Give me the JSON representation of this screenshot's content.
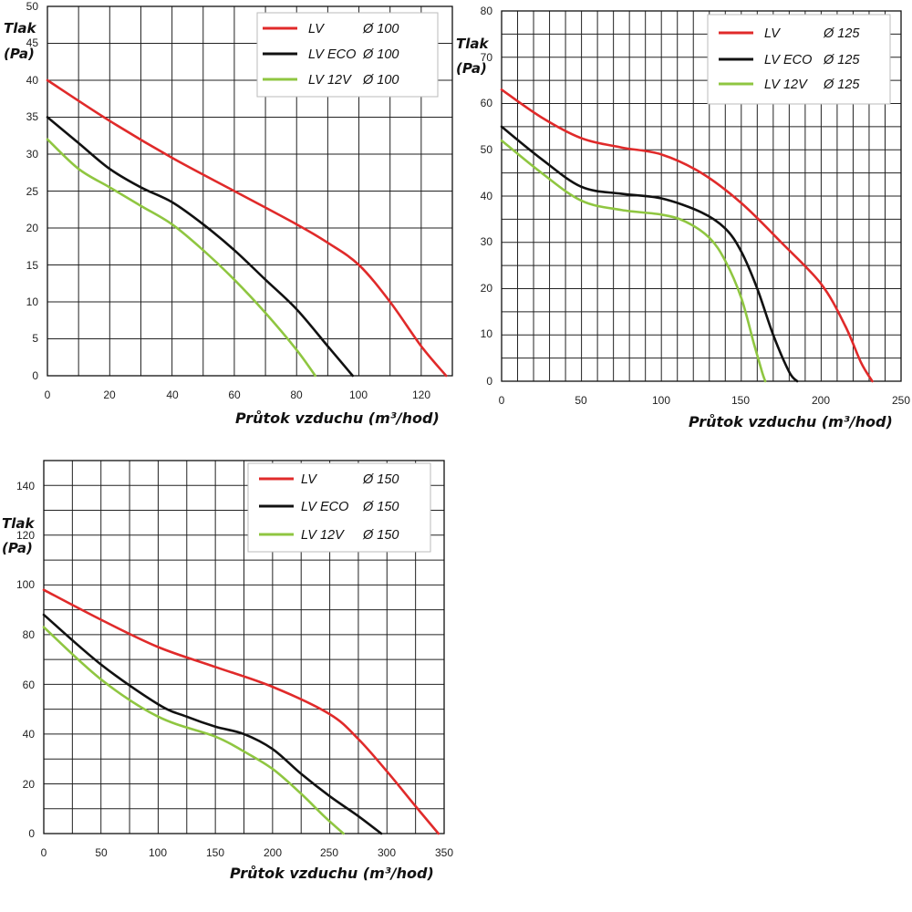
{
  "colors": {
    "LV": "#e02a2a",
    "LV ECO": "#111111",
    "LV 12V": "#8fc641"
  },
  "chart_data": [
    {
      "type": "line",
      "xlabel": "Průtok vzduchu (m³/hod)",
      "ylabel_top": "Tlak",
      "ylabel_bottom": "(Pa)",
      "xlim": [
        0,
        130
      ],
      "ylim": [
        0,
        50
      ],
      "x_ticks": [
        "0",
        "20",
        "40",
        "60",
        "80",
        "100",
        "120"
      ],
      "y_ticks": [
        "50",
        "45",
        "40",
        "35",
        "30",
        "25",
        "20",
        "15",
        "10",
        "5",
        "0"
      ],
      "series": [
        {
          "name": "LV",
          "diameter": "Ø 100",
          "points": [
            [
              0,
              40
            ],
            [
              20,
              34.5
            ],
            [
              40,
              29.5
            ],
            [
              60,
              25
            ],
            [
              80,
              20.5
            ],
            [
              90,
              18
            ],
            [
              100,
              15
            ],
            [
              110,
              10
            ],
            [
              120,
              4
            ],
            [
              128,
              0
            ]
          ]
        },
        {
          "name": "LV ECO",
          "diameter": "Ø 100",
          "points": [
            [
              0,
              35
            ],
            [
              10,
              31.5
            ],
            [
              20,
              28
            ],
            [
              30,
              25.5
            ],
            [
              40,
              23.5
            ],
            [
              50,
              20.5
            ],
            [
              60,
              17
            ],
            [
              70,
              13
            ],
            [
              80,
              9
            ],
            [
              90,
              4
            ],
            [
              98,
              0
            ]
          ]
        },
        {
          "name": "LV 12V",
          "diameter": "Ø 100",
          "points": [
            [
              0,
              32
            ],
            [
              10,
              28
            ],
            [
              20,
              25.5
            ],
            [
              30,
              23
            ],
            [
              40,
              20.5
            ],
            [
              50,
              17
            ],
            [
              60,
              13
            ],
            [
              70,
              8.5
            ],
            [
              80,
              3.5
            ],
            [
              86,
              0
            ]
          ]
        }
      ]
    },
    {
      "type": "line",
      "xlabel": "Průtok vzduchu (m³/hod)",
      "ylabel_top": "Tlak",
      "ylabel_bottom": "(Pa)",
      "xlim": [
        0,
        250
      ],
      "ylim": [
        0,
        80
      ],
      "x_ticks": [
        "0",
        "50",
        "100",
        "150",
        "200",
        "250"
      ],
      "y_ticks": [
        "80",
        "70",
        "60",
        "50",
        "40",
        "30",
        "20",
        "10",
        "0"
      ],
      "series": [
        {
          "name": "LV",
          "diameter": "Ø 125",
          "points": [
            [
              0,
              63
            ],
            [
              25,
              57
            ],
            [
              50,
              52.5
            ],
            [
              75,
              50.5
            ],
            [
              100,
              49
            ],
            [
              125,
              45
            ],
            [
              150,
              38.5
            ],
            [
              175,
              30
            ],
            [
              200,
              21
            ],
            [
              215,
              12
            ],
            [
              225,
              4
            ],
            [
              232,
              0
            ]
          ]
        },
        {
          "name": "LV ECO",
          "diameter": "Ø 125",
          "points": [
            [
              0,
              55
            ],
            [
              25,
              48
            ],
            [
              50,
              42
            ],
            [
              75,
              40.5
            ],
            [
              100,
              39.5
            ],
            [
              125,
              36.5
            ],
            [
              140,
              33
            ],
            [
              150,
              28
            ],
            [
              160,
              20
            ],
            [
              170,
              10
            ],
            [
              180,
              2
            ],
            [
              185,
              0
            ]
          ]
        },
        {
          "name": "LV 12V",
          "diameter": "Ø 125",
          "points": [
            [
              0,
              52
            ],
            [
              25,
              45
            ],
            [
              50,
              39
            ],
            [
              75,
              37
            ],
            [
              100,
              36
            ],
            [
              115,
              34.5
            ],
            [
              130,
              31
            ],
            [
              140,
              26
            ],
            [
              150,
              18
            ],
            [
              158,
              8
            ],
            [
              163,
              2
            ],
            [
              165,
              0
            ]
          ]
        }
      ]
    },
    {
      "type": "line",
      "xlabel": "Průtok vzduchu (m³/hod)",
      "ylabel_top": "Tlak",
      "ylabel_bottom": "(Pa)",
      "xlim": [
        0,
        350
      ],
      "ylim": [
        0,
        150
      ],
      "x_ticks": [
        "0",
        "50",
        "100",
        "150",
        "200",
        "250",
        "300",
        "350"
      ],
      "y_ticks": [
        "140",
        "120",
        "100",
        "80",
        "60",
        "40",
        "20",
        "0"
      ],
      "series": [
        {
          "name": "LV",
          "diameter": "Ø 150",
          "points": [
            [
              0,
              98
            ],
            [
              50,
              86
            ],
            [
              100,
              75
            ],
            [
              150,
              67
            ],
            [
              200,
              59
            ],
            [
              250,
              48
            ],
            [
              275,
              38
            ],
            [
              300,
              25
            ],
            [
              325,
              11
            ],
            [
              345,
              0
            ]
          ]
        },
        {
          "name": "LV ECO",
          "diameter": "Ø 150",
          "points": [
            [
              0,
              88
            ],
            [
              50,
              68
            ],
            [
              100,
              52
            ],
            [
              125,
              47
            ],
            [
              150,
              43
            ],
            [
              175,
              40
            ],
            [
              200,
              34
            ],
            [
              225,
              24
            ],
            [
              250,
              15
            ],
            [
              275,
              7
            ],
            [
              295,
              0
            ]
          ]
        },
        {
          "name": "LV 12V",
          "diameter": "Ø 150",
          "points": [
            [
              0,
              83
            ],
            [
              50,
              62
            ],
            [
              100,
              47
            ],
            [
              150,
              39
            ],
            [
              175,
              33
            ],
            [
              200,
              26
            ],
            [
              225,
              16
            ],
            [
              245,
              7
            ],
            [
              262,
              0
            ]
          ]
        }
      ]
    }
  ]
}
